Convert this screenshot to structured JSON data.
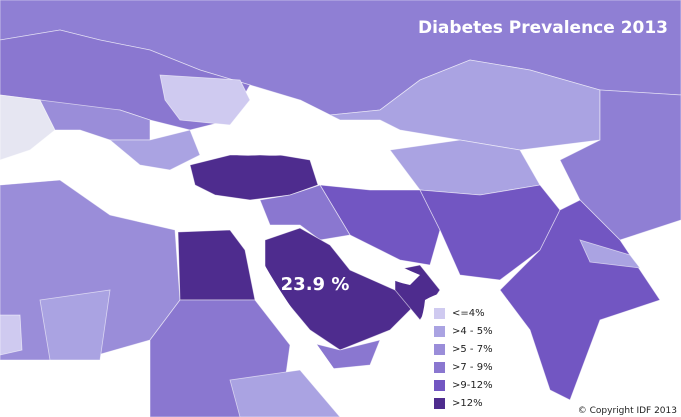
{
  "title": "Diabetes Prevalence 2013",
  "annotation": "23.9 %",
  "legend": {
    "items": [
      {
        "label": "<=4%",
        "color": "#cfcaf0"
      },
      {
        "label": ">4 - 5%",
        "color": "#aaa3e2"
      },
      {
        "label": ">5 - 7%",
        "color": "#9a8dd9"
      },
      {
        "label": ">7 - 9%",
        "color": "#8a77d0"
      },
      {
        "label": ">9-12%",
        "color": "#7256c2"
      },
      {
        "label": ">12%",
        "color": "#4e2c8e"
      }
    ]
  },
  "copyright": "© Copyright IDF 2013"
}
